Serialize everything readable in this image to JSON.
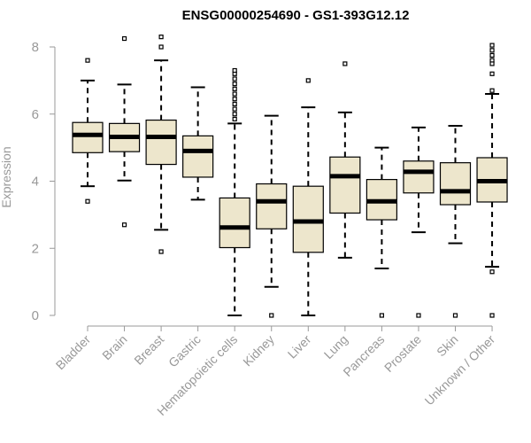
{
  "chart_data": {
    "type": "boxplot",
    "title": "ENSG00000254690 - GS1-393G12.12",
    "xlabel": "",
    "ylabel": "Expression",
    "ylim": [
      0,
      8
    ],
    "yticks": [
      0,
      2,
      4,
      6,
      8
    ],
    "box_fill": "#ede6cc",
    "categories": [
      "Bladder",
      "Brain",
      "Breast",
      "Gastric",
      "Hematopoietic cells",
      "Kidney",
      "Liver",
      "Lung",
      "Pancreas",
      "Prostate",
      "Skin",
      "Unknown / Other"
    ],
    "boxes": [
      {
        "name": "Bladder",
        "whisker_low": 3.85,
        "q1": 4.85,
        "median": 5.38,
        "q3": 5.75,
        "whisker_high": 7.0,
        "outliers": [
          7.6,
          3.4
        ]
      },
      {
        "name": "Brain",
        "whisker_low": 4.02,
        "q1": 4.88,
        "median": 5.32,
        "q3": 5.72,
        "whisker_high": 6.88,
        "outliers": [
          8.25,
          2.7
        ]
      },
      {
        "name": "Breast",
        "whisker_low": 2.55,
        "q1": 4.5,
        "median": 5.32,
        "q3": 5.82,
        "whisker_high": 7.6,
        "outliers": [
          8.3,
          8.0,
          1.9
        ]
      },
      {
        "name": "Gastric",
        "whisker_low": 3.45,
        "q1": 4.12,
        "median": 4.9,
        "q3": 5.35,
        "whisker_high": 6.8,
        "outliers": []
      },
      {
        "name": "Hematopoietic cells",
        "whisker_low": 0.0,
        "q1": 2.02,
        "median": 2.62,
        "q3": 3.5,
        "whisker_high": 5.72,
        "outliers": [
          5.85,
          6.0,
          6.15,
          6.3,
          6.45,
          6.6,
          6.75,
          6.9,
          7.05,
          7.2,
          7.3
        ]
      },
      {
        "name": "Kidney",
        "whisker_low": 0.85,
        "q1": 2.58,
        "median": 3.4,
        "q3": 3.92,
        "whisker_high": 5.95,
        "outliers": [
          0.0
        ]
      },
      {
        "name": "Liver",
        "whisker_low": 0.0,
        "q1": 1.88,
        "median": 2.8,
        "q3": 3.85,
        "whisker_high": 6.2,
        "outliers": [
          7.0
        ]
      },
      {
        "name": "Lung",
        "whisker_low": 1.72,
        "q1": 3.05,
        "median": 4.15,
        "q3": 4.72,
        "whisker_high": 6.05,
        "outliers": [
          7.5
        ]
      },
      {
        "name": "Pancreas",
        "whisker_low": 1.4,
        "q1": 2.85,
        "median": 3.4,
        "q3": 4.05,
        "whisker_high": 5.0,
        "outliers": [
          0.0
        ]
      },
      {
        "name": "Prostate",
        "whisker_low": 2.48,
        "q1": 3.65,
        "median": 4.28,
        "q3": 4.6,
        "whisker_high": 5.6,
        "outliers": [
          0.0
        ]
      },
      {
        "name": "Skin",
        "whisker_low": 2.15,
        "q1": 3.3,
        "median": 3.7,
        "q3": 4.55,
        "whisker_high": 5.65,
        "outliers": [
          0.0
        ]
      },
      {
        "name": "Unknown / Other",
        "whisker_low": 1.45,
        "q1": 3.38,
        "median": 4.0,
        "q3": 4.7,
        "whisker_high": 6.6,
        "outliers": [
          8.05,
          7.9,
          7.75,
          7.6,
          7.5,
          7.2,
          6.7,
          1.3,
          0.0
        ]
      }
    ]
  }
}
